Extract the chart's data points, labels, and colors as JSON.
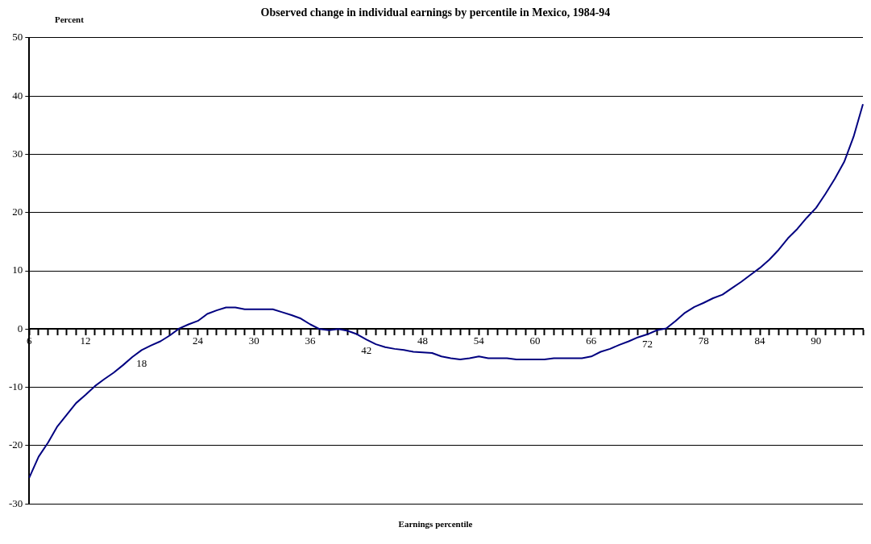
{
  "chart_data": {
    "type": "line",
    "title": "Observed change in individual earnings by percentile in Mexico, 1984-94",
    "xlabel": "Earnings percentile",
    "ylabel": "Percent",
    "categories": [
      "6",
      null,
      null,
      null,
      null,
      null,
      "12",
      null,
      null,
      null,
      null,
      null,
      "18",
      null,
      null,
      null,
      null,
      null,
      "24",
      null,
      null,
      null,
      null,
      null,
      "30",
      null,
      null,
      null,
      null,
      null,
      "36",
      null,
      null,
      null,
      null,
      null,
      "42",
      null,
      null,
      null,
      null,
      null,
      "48",
      null,
      null,
      null,
      null,
      null,
      "54",
      null,
      null,
      null,
      null,
      null,
      "60",
      null,
      null,
      null,
      null,
      null,
      "66",
      null,
      null,
      null,
      null,
      null,
      "72",
      null,
      null,
      null,
      null,
      null,
      "78",
      null,
      null,
      null,
      null,
      null,
      "84",
      null,
      null,
      null,
      null,
      null,
      "90",
      null,
      null,
      null,
      null,
      null
    ],
    "series": [
      {
        "color": "#000080",
        "values": [
          -25.5,
          -21.9,
          -19.5,
          -16.7,
          -14.7,
          -12.7,
          -11.3,
          -9.8,
          -8.6,
          -7.5,
          -6.2,
          -4.8,
          -3.6,
          -2.8,
          -2.1,
          -1.1,
          0.1,
          0.8,
          1.4,
          2.6,
          3.2,
          3.7,
          3.7,
          3.4,
          3.4,
          3.4,
          3.4,
          2.9,
          2.4,
          1.8,
          0.8,
          0,
          -0.2,
          0,
          -0.3,
          -0.9,
          -1.8,
          -2.6,
          -3.1,
          -3.4,
          -3.6,
          -3.9,
          -4,
          -4.1,
          -4.7,
          -5,
          -5.2,
          -5,
          -4.7,
          -5,
          -5,
          -5,
          -5.2,
          -5.2,
          -5.2,
          -5.2,
          -5,
          -5,
          -5,
          -5,
          -4.7,
          -3.9,
          -3.4,
          -2.7,
          -2.1,
          -1.4,
          -0.9,
          -0.2,
          0.1,
          1.4,
          2.8,
          3.8,
          4.5,
          5.3,
          5.9,
          7,
          8.1,
          9.3,
          10.5,
          11.9,
          13.6,
          15.6,
          17.2,
          19.1,
          20.8,
          23.2,
          25.8,
          28.7,
          33,
          38.6
        ]
      }
    ],
    "ylim": [
      -30,
      50
    ],
    "yticks": [
      -30,
      -20,
      -10,
      0,
      10,
      20,
      30,
      40,
      50
    ],
    "grid": "y",
    "legend": false,
    "marker": "none",
    "line_style": "solid"
  }
}
